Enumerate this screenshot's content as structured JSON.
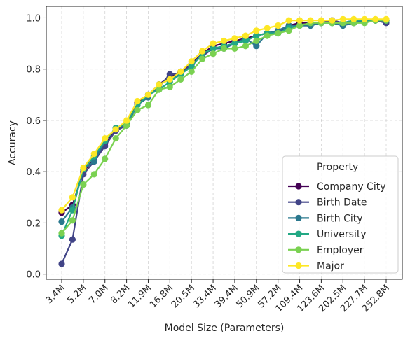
{
  "chart_data": {
    "type": "line",
    "xlabel": "Model Size (Parameters)",
    "ylabel": "Accuracy",
    "ylim": [
      0.0,
      1.0
    ],
    "yticks": [
      "0.0",
      "0.2",
      "0.4",
      "0.6",
      "0.8",
      "1.0"
    ],
    "grid": true,
    "x": [
      "3.4M",
      "4.3M",
      "5.2M",
      "6.1M",
      "7.0M",
      "7.6M",
      "8.2M",
      "10.0M",
      "11.9M",
      "14.3M",
      "16.8M",
      "18.6M",
      "20.5M",
      "27.0M",
      "33.4M",
      "36.4M",
      "39.4M",
      "45.1M",
      "50.9M",
      "54.0M",
      "57.2M",
      "83.3M",
      "109.4M",
      "116.5M",
      "123.6M",
      "163.0M",
      "202.5M",
      "215.1M",
      "227.7M",
      "240.2M",
      "252.8M"
    ],
    "x_tick_labels": [
      "3.4M",
      "5.2M",
      "7.0M",
      "8.2M",
      "11.9M",
      "16.8M",
      "20.5M",
      "33.4M",
      "39.4M",
      "50.9M",
      "57.2M",
      "109.4M",
      "123.6M",
      "202.5M",
      "227.7M",
      "252.8M"
    ],
    "legend": {
      "title": "Property",
      "position": "lower-right"
    },
    "series": [
      {
        "name": "Company City",
        "color": "#440154",
        "values": [
          0.24,
          0.27,
          0.4,
          0.45,
          0.51,
          0.56,
          0.59,
          0.67,
          0.7,
          0.74,
          0.77,
          0.79,
          0.82,
          0.86,
          0.89,
          0.9,
          0.91,
          0.92,
          0.93,
          0.94,
          0.95,
          0.97,
          0.98,
          0.98,
          0.98,
          0.99,
          0.98,
          0.99,
          0.99,
          0.99,
          0.99
        ]
      },
      {
        "name": "Birth Date",
        "color": "#414487",
        "values": [
          0.04,
          0.135,
          0.39,
          0.44,
          0.5,
          0.56,
          0.58,
          0.66,
          0.7,
          0.73,
          0.78,
          0.78,
          0.82,
          0.85,
          0.88,
          0.89,
          0.9,
          0.91,
          0.93,
          0.94,
          0.94,
          0.97,
          0.97,
          0.97,
          0.98,
          0.99,
          0.98,
          0.98,
          0.99,
          0.99,
          0.98
        ]
      },
      {
        "name": "Birth City",
        "color": "#2a788e",
        "values": [
          0.205,
          0.26,
          0.41,
          0.44,
          0.52,
          0.57,
          0.58,
          0.66,
          0.69,
          0.74,
          0.76,
          0.78,
          0.81,
          0.86,
          0.88,
          0.88,
          0.9,
          0.92,
          0.89,
          0.94,
          0.95,
          0.97,
          0.97,
          0.97,
          0.98,
          0.98,
          0.97,
          0.98,
          0.99,
          0.99,
          0.99
        ]
      },
      {
        "name": "University",
        "color": "#22a884",
        "values": [
          0.15,
          0.25,
          0.41,
          0.46,
          0.52,
          0.57,
          0.59,
          0.66,
          0.7,
          0.72,
          0.75,
          0.78,
          0.81,
          0.86,
          0.88,
          0.89,
          0.9,
          0.91,
          0.93,
          0.94,
          0.94,
          0.96,
          0.97,
          0.98,
          0.98,
          0.98,
          0.98,
          0.99,
          0.99,
          0.99,
          0.99
        ]
      },
      {
        "name": "Employer",
        "color": "#7ad151",
        "values": [
          0.16,
          0.21,
          0.35,
          0.39,
          0.45,
          0.53,
          0.58,
          0.64,
          0.66,
          0.72,
          0.73,
          0.76,
          0.79,
          0.84,
          0.86,
          0.88,
          0.88,
          0.89,
          0.91,
          0.93,
          0.94,
          0.95,
          0.97,
          0.98,
          0.98,
          0.98,
          0.98,
          0.98,
          0.98,
          0.99,
          0.99
        ]
      },
      {
        "name": "Major",
        "color": "#fde725",
        "values": [
          0.25,
          0.3,
          0.415,
          0.47,
          0.53,
          0.565,
          0.6,
          0.675,
          0.7,
          0.74,
          0.76,
          0.79,
          0.83,
          0.87,
          0.9,
          0.91,
          0.92,
          0.93,
          0.95,
          0.96,
          0.97,
          0.99,
          0.99,
          0.99,
          0.99,
          0.99,
          0.995,
          0.995,
          0.995,
          0.995,
          0.995
        ]
      }
    ]
  }
}
